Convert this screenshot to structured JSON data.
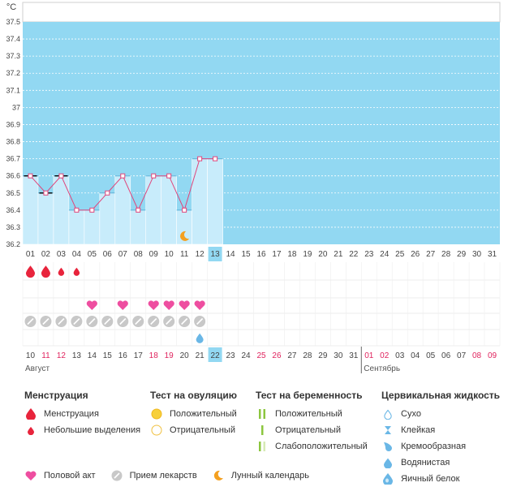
{
  "chart_data": {
    "type": "line",
    "unit": "°C",
    "ylim": [
      36.2,
      37.5
    ],
    "y_ticks": [
      "36.2",
      "36.3",
      "36.4",
      "36.5",
      "36.6",
      "36.7",
      "36.8",
      "36.9",
      "37",
      "37.1",
      "37.2",
      "37.3",
      "37.4",
      "37.5"
    ],
    "cycle_days": [
      "01",
      "02",
      "03",
      "04",
      "05",
      "06",
      "07",
      "08",
      "09",
      "10",
      "11",
      "12",
      "13",
      "14",
      "15",
      "16",
      "17",
      "18",
      "19",
      "20",
      "21",
      "22",
      "23",
      "24",
      "25",
      "26",
      "27",
      "28",
      "29",
      "30",
      "31"
    ],
    "current_cycle_day": 13,
    "temperatures": [
      36.6,
      36.5,
      36.6,
      36.4,
      36.4,
      36.5,
      36.6,
      36.4,
      36.6,
      36.6,
      36.4,
      36.7,
      36.7
    ],
    "cover_line_days": [
      1,
      2,
      3
    ],
    "dates": [
      {
        "label": "10",
        "weekend": false
      },
      {
        "label": "11",
        "weekend": true
      },
      {
        "label": "12",
        "weekend": true
      },
      {
        "label": "13",
        "weekend": false
      },
      {
        "label": "14",
        "weekend": false
      },
      {
        "label": "15",
        "weekend": false
      },
      {
        "label": "16",
        "weekend": false
      },
      {
        "label": "17",
        "weekend": false
      },
      {
        "label": "18",
        "weekend": true
      },
      {
        "label": "19",
        "weekend": true
      },
      {
        "label": "20",
        "weekend": false
      },
      {
        "label": "21",
        "weekend": false
      },
      {
        "label": "22",
        "weekend": false
      },
      {
        "label": "23",
        "weekend": false
      },
      {
        "label": "24",
        "weekend": false
      },
      {
        "label": "25",
        "weekend": true
      },
      {
        "label": "26",
        "weekend": true
      },
      {
        "label": "27",
        "weekend": false
      },
      {
        "label": "28",
        "weekend": false
      },
      {
        "label": "29",
        "weekend": false
      },
      {
        "label": "30",
        "weekend": false
      },
      {
        "label": "31",
        "weekend": false
      },
      {
        "label": "01",
        "weekend": true
      },
      {
        "label": "02",
        "weekend": true
      },
      {
        "label": "03",
        "weekend": false
      },
      {
        "label": "04",
        "weekend": false
      },
      {
        "label": "05",
        "weekend": false
      },
      {
        "label": "06",
        "weekend": false
      },
      {
        "label": "07",
        "weekend": false
      },
      {
        "label": "08",
        "weekend": true
      },
      {
        "label": "09",
        "weekend": true
      }
    ],
    "month_labels": [
      {
        "label": "Август",
        "start_day": 1
      },
      {
        "label": "Сентябрь",
        "start_day": 23
      }
    ],
    "events": {
      "menstruation": [
        1,
        2
      ],
      "light_spotting": [
        3,
        4
      ],
      "intercourse": [
        5,
        7,
        9,
        10,
        11,
        12
      ],
      "medication": [
        1,
        2,
        3,
        4,
        5,
        6,
        7,
        8,
        9,
        10,
        11,
        12
      ],
      "moon": [
        11
      ],
      "cervical_watery": [
        12
      ]
    },
    "colors": {
      "background": "#92d8f2",
      "bar_fill": "#c8ecfb",
      "line": "#e0457b",
      "today": "#92d8f2",
      "weekend": "#e0245e",
      "menstruation": "#e8243c",
      "heart": "#ee4ea0",
      "pill": "#c8c8c8",
      "moon": "#f4a020",
      "fluid": "#6ab7e6",
      "grid_row": "#dddddd",
      "month_divider": "#666666"
    }
  },
  "legend": {
    "menstruation": {
      "title": "Менструация",
      "items": [
        {
          "label": "Менструация",
          "icon": "drop-large-icon"
        },
        {
          "label": "Небольшие выделения",
          "icon": "drop-small-icon"
        }
      ]
    },
    "ovulation_test": {
      "title": "Тест на овуляцию",
      "items": [
        {
          "label": "Положительный",
          "icon": "circle-filled-icon"
        },
        {
          "label": "Отрицательный",
          "icon": "circle-empty-icon"
        }
      ]
    },
    "pregnancy_test": {
      "title": "Тест на беременность",
      "items": [
        {
          "label": "Положительный",
          "icon": "two-lines-icon"
        },
        {
          "label": "Отрицательный",
          "icon": "one-line-icon"
        },
        {
          "label": "Слабоположительный",
          "icon": "faint-lines-icon"
        }
      ]
    },
    "cervical_fluid": {
      "title": "Цервикальная жидкость",
      "items": [
        {
          "label": "Сухо",
          "icon": "drop-outline-icon"
        },
        {
          "label": "Клейкая",
          "icon": "hourglass-icon"
        },
        {
          "label": "Кремообразная",
          "icon": "drop-cream-icon"
        },
        {
          "label": "Водянистая",
          "icon": "drop-water-icon"
        },
        {
          "label": "Яичный белок",
          "icon": "drop-egg-icon"
        }
      ]
    },
    "other": [
      {
        "label": "Половой акт",
        "icon": "heart-icon"
      },
      {
        "label": "Прием лекарств",
        "icon": "pill-icon"
      },
      {
        "label": "Лунный календарь",
        "icon": "moon-icon"
      }
    ]
  }
}
